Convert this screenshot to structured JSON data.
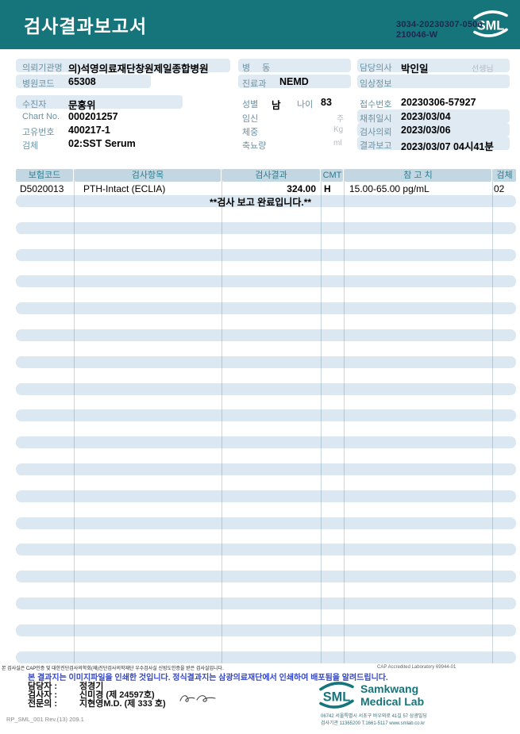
{
  "header": {
    "title": "검사결과보고서",
    "logo_text": "SML",
    "doc_no_line1": "3034-20230307-0506",
    "doc_no_line2": "210046-W"
  },
  "info": {
    "requester_label": "의뢰기관명",
    "requester_value": "의)석영의료재단창원제일종합병원",
    "hospital_code_label": "병원코드",
    "hospital_code_value": "65308",
    "ward_label": "병 동",
    "ward_value": "",
    "dept_label": "진료과",
    "dept_value": "NEMD",
    "doctor_label": "담당의사",
    "doctor_value": "박인일",
    "doctor_suffix": "선생님",
    "clinical_label": "임상정보",
    "clinical_value": "",
    "patient_label": "수진자",
    "patient_value": "문홍위",
    "sex_label": "성별",
    "sex_value": "남",
    "age_label": "나이",
    "age_value": "83",
    "receipt_label": "접수번호",
    "receipt_value": "20230306-57927",
    "chart_label": "Chart No.",
    "chart_value": "000201257",
    "pregnancy_label": "임신",
    "pregnancy_unit": "주",
    "collect_label": "채취일시",
    "collect_value": "2023/03/04",
    "uid_label": "고유번호",
    "uid_value": "400217-1",
    "weight_label": "체중",
    "weight_unit": "Kg",
    "request_label": "검사의뢰",
    "request_value": "2023/03/06",
    "specimen_label": "검체",
    "specimen_value": "02:SST Serum",
    "urine_label": "축뇨량",
    "urine_unit": "ml",
    "report_label": "결과보고",
    "report_value": "2023/03/07 04시41분"
  },
  "table": {
    "headers": [
      "보험코드",
      "검사항목",
      "검사결과",
      "CMT",
      "참 고 치",
      "검체"
    ],
    "rows": [
      {
        "code": "D5020013",
        "name": "PTH-Intact (ECLIA)",
        "result": "324.00",
        "flag": "H",
        "cmt": "",
        "reference": "15.00-65.00 pg/mL",
        "specimen": "02"
      }
    ],
    "completion_message": "**검사  보고  완료입니다.**"
  },
  "footer": {
    "accreditation_left": "본 검사실은 CAP인증 및 대한진단검사의학회(재)진단검사의학재단 우수검사실 신빙도인증을 받은 검사실입니다.",
    "accreditation_right": "CAP Accredited Laboratory 69944-01",
    "notice": "본 결과지는 이미지파일을 인쇄한 것입니다. 정식결과지는 삼광의료재단에서 인쇄하여 배포됨을 알려드립니다.",
    "staff": [
      {
        "role": "담당자 :",
        "name": "정경기"
      },
      {
        "role": "검사자 :",
        "name": "신미경 (제 24597호)"
      },
      {
        "role": "전문의 :",
        "name": "지현영M.D. (제 333 호)"
      }
    ],
    "logo_text": "SML",
    "lab_name_line1": "Samkwang",
    "lab_name_line2": "Medical Lab",
    "address_line1": "06742 서울특별시 서초구 바우뫼로 41길 57 삼광빌딩",
    "address_line2": "검사기관 11365200 T.1661-5117 www.smlab.co.kr",
    "form_no": "RP_SML_001 Rev.(13) 209.1"
  },
  "colors": {
    "teal": "#16747b",
    "pill_bg": "#dfeaf2",
    "table_header_bg": "#c2d7e2",
    "stripe_bg": "#dce8f1",
    "notice_blue": "#3347cc"
  }
}
